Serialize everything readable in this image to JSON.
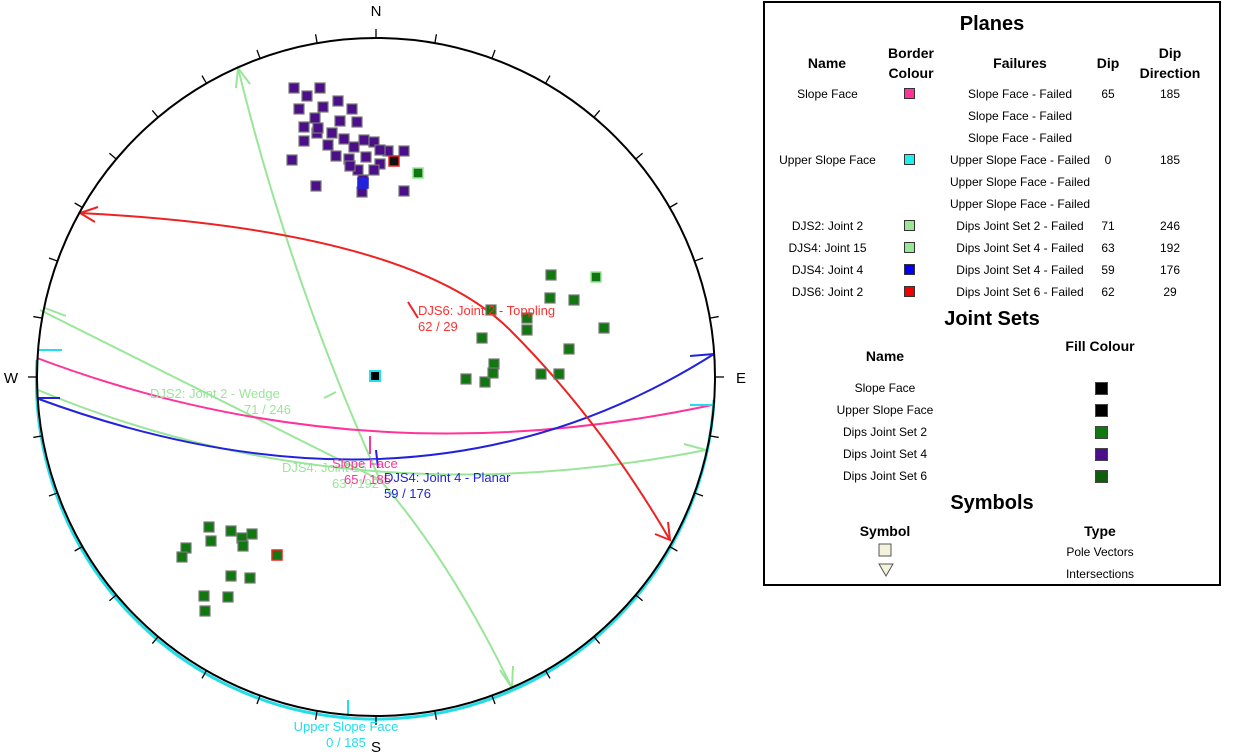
{
  "compass": {
    "n": "N",
    "e": "E",
    "s": "S",
    "w": "W"
  },
  "plot_labels": {
    "djs6": {
      "line1": "DJS6: Joint 2 - Toppling",
      "line2": "62 / 29",
      "color": "#ff3030"
    },
    "djs2": {
      "line1": "DJS2: Joint 2 - Wedge",
      "line2": "71 / 246",
      "color": "#99e699"
    },
    "djs4_15": {
      "line1": "DJS4: Joint 15",
      "line2": "63 / 192",
      "color": "#99e699"
    },
    "slope": {
      "line1": "Slope Face",
      "line2": "65 / 185",
      "color": "#ff3399"
    },
    "djs4_4": {
      "line1": "DJS4: Joint 4 - Planar",
      "line2": "59 / 176",
      "color": "#2222dd"
    },
    "upper": {
      "line1": "Upper Slope Face",
      "line2": "0 / 185",
      "color": "#22ddee"
    }
  },
  "legend": {
    "planes": {
      "title": "Planes",
      "headers": {
        "name": "Name",
        "border_colour": "Border Colour",
        "failures": "Failures",
        "dip": "Dip",
        "dip_direction": "Dip Direction"
      },
      "rows": [
        {
          "name": "Slope Face",
          "color": "#ff3399",
          "failures": [
            "Slope Face - Failed",
            "Slope Face - Failed",
            "Slope Face - Failed"
          ],
          "dip": "65",
          "dip_direction": "185"
        },
        {
          "name": "Upper Slope Face",
          "color": "#22eeee",
          "failures": [
            "Upper Slope Face - Failed",
            "Upper Slope Face - Failed",
            "Upper Slope Face - Failed"
          ],
          "dip": "0",
          "dip_direction": "185"
        },
        {
          "name": "DJS2: Joint 2",
          "color": "#99e699",
          "failures": [
            "Dips Joint Set 2 - Failed"
          ],
          "dip": "71",
          "dip_direction": "246"
        },
        {
          "name": "DJS4: Joint 15",
          "color": "#99e699",
          "failures": [
            "Dips Joint Set 4 - Failed"
          ],
          "dip": "63",
          "dip_direction": "192"
        },
        {
          "name": "DJS4: Joint 4",
          "color": "#0000ee",
          "failures": [
            "Dips Joint Set 4 - Failed"
          ],
          "dip": "59",
          "dip_direction": "176"
        },
        {
          "name": "DJS6: Joint 2",
          "color": "#ee0000",
          "failures": [
            "Dips Joint Set 6 - Failed"
          ],
          "dip": "62",
          "dip_direction": "29"
        }
      ]
    },
    "joint_sets": {
      "title": "Joint Sets",
      "headers": {
        "name": "Name",
        "fill_colour": "Fill Colour"
      },
      "rows": [
        {
          "name": "Slope Face",
          "color": "#000000"
        },
        {
          "name": "Upper Slope Face",
          "color": "#000000"
        },
        {
          "name": "Dips Joint Set 2",
          "color": "#117711"
        },
        {
          "name": "Dips Joint Set 4",
          "color": "#4b0f8a"
        },
        {
          "name": "Dips Joint Set 6",
          "color": "#0e5e0e"
        }
      ]
    },
    "symbols": {
      "title": "Symbols",
      "headers": {
        "symbol": "Symbol",
        "type": "Type"
      },
      "rows": [
        {
          "type": "Pole Vectors",
          "symbol": "square"
        },
        {
          "type": "Intersections",
          "symbol": "triangle"
        }
      ]
    }
  }
}
